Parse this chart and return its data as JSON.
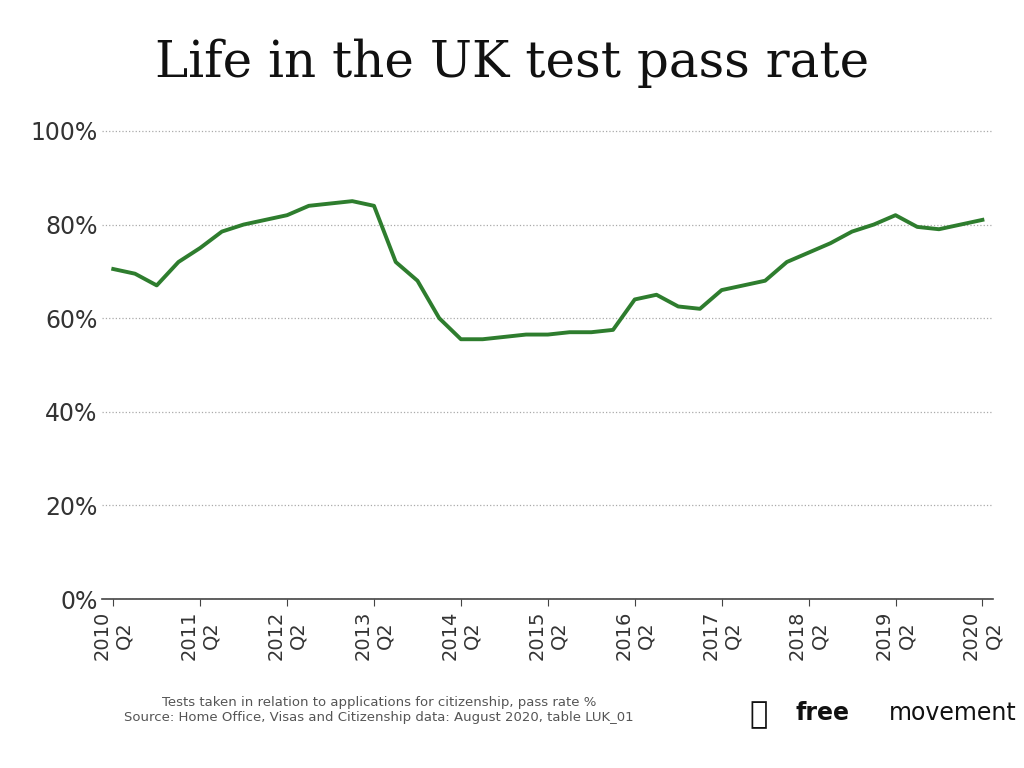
{
  "title": "Life in the UK test pass rate",
  "line_color": "#2e7d2e",
  "line_width": 2.8,
  "background_color": "#ffffff",
  "yticks": [
    0.0,
    0.2,
    0.4,
    0.6,
    0.8,
    1.0
  ],
  "ytick_labels": [
    "0%",
    "20%",
    "40%",
    "60%",
    "80%",
    "100%"
  ],
  "source_text": "Tests taken in relation to applications for citizenship, pass rate %\nSource: Home Office, Visas and Citizenship data: August 2020, table LUK_01",
  "x_labels": [
    "2010\nQ2",
    "2011\nQ2",
    "2012\nQ2",
    "2013\nQ2",
    "2014\nQ2",
    "2015\nQ2",
    "2016\nQ2",
    "2017\nQ2",
    "2018\nQ2",
    "2019\nQ2",
    "2020\nQ2"
  ],
  "values": [
    0.705,
    0.695,
    0.67,
    0.72,
    0.75,
    0.785,
    0.8,
    0.81,
    0.82,
    0.84,
    0.845,
    0.85,
    0.84,
    0.72,
    0.68,
    0.6,
    0.555,
    0.555,
    0.56,
    0.565,
    0.565,
    0.57,
    0.57,
    0.575,
    0.64,
    0.65,
    0.625,
    0.62,
    0.66,
    0.67,
    0.68,
    0.72,
    0.74,
    0.76,
    0.785,
    0.8,
    0.82,
    0.795,
    0.79,
    0.8,
    0.81
  ],
  "xtick_positions": [
    0,
    4,
    8,
    12,
    16,
    20,
    24,
    28,
    32,
    36,
    40
  ],
  "title_fontsize": 36,
  "ytick_fontsize": 17,
  "xtick_fontsize": 14
}
